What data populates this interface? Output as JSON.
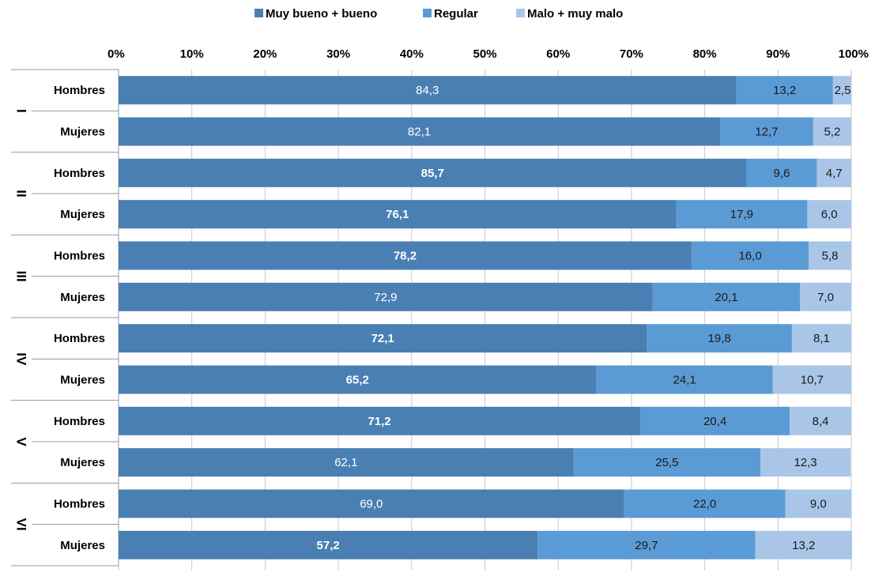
{
  "chart_data": {
    "type": "bar",
    "orientation": "horizontal",
    "stacked": "percent",
    "legend_position": "top",
    "grid": true,
    "xlim": [
      0,
      100
    ],
    "x_ticks": [
      "0%",
      "10%",
      "20%",
      "30%",
      "40%",
      "50%",
      "60%",
      "70%",
      "80%",
      "90%",
      "100%"
    ],
    "groups": [
      "I",
      "II",
      "III",
      "IV",
      "V",
      "VI"
    ],
    "subcategories": [
      "Hombres",
      "Mujeres"
    ],
    "series": [
      {
        "name": "Muy bueno + bueno",
        "color": "#4a7fb3",
        "values": [
          84.3,
          82.1,
          85.7,
          76.1,
          78.2,
          72.9,
          72.1,
          65.2,
          71.2,
          62.1,
          69.0,
          57.2
        ]
      },
      {
        "name": "Regular",
        "color": "#5b9bd5",
        "values": [
          13.2,
          12.7,
          9.6,
          17.9,
          16.0,
          20.1,
          19.8,
          24.1,
          20.4,
          25.5,
          22.0,
          29.7
        ]
      },
      {
        "name": "Malo + muy malo",
        "color": "#a9c6e8",
        "values": [
          2.5,
          5.2,
          4.7,
          6.0,
          5.8,
          7.0,
          8.1,
          10.7,
          8.4,
          12.3,
          9.0,
          13.2
        ]
      }
    ],
    "data_labels": [
      [
        "84,3",
        "82,1",
        "85,7",
        "76,1",
        "78,2",
        "72,9",
        "72,1",
        "65,2",
        "71,2",
        "62,1",
        "69,0",
        "57,2"
      ],
      [
        "13,2",
        "12,7",
        "9,6",
        "17,9",
        "16,0",
        "20,1",
        "19,8",
        "24,1",
        "20,4",
        "25,5",
        "22,0",
        "29,7"
      ],
      [
        "2,5",
        "5,2",
        "4,7",
        "6,0",
        "5,8",
        "7,0",
        "8,1",
        "10,7",
        "8,4",
        "12,3",
        "9,0",
        "13,2"
      ]
    ],
    "bold_labels": [
      [
        false,
        false,
        true,
        true,
        true,
        false,
        true,
        true,
        true,
        false,
        false,
        true
      ],
      [
        false,
        false,
        false,
        false,
        false,
        false,
        false,
        false,
        false,
        false,
        false,
        false
      ],
      [
        false,
        false,
        false,
        false,
        false,
        false,
        false,
        false,
        false,
        false,
        false,
        false
      ]
    ],
    "label_colors": [
      "#ffffff",
      "#1a1a1a",
      "#1a1a1a"
    ]
  }
}
